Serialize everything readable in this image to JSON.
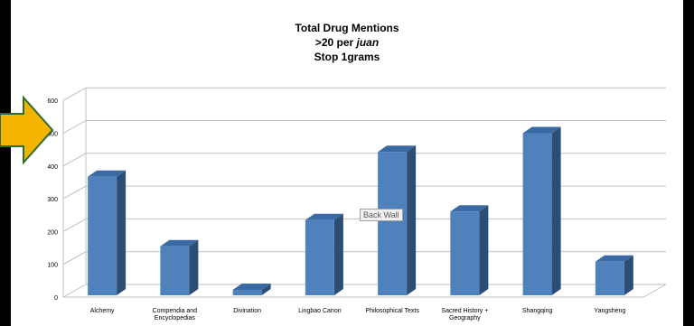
{
  "chart_data": {
    "type": "bar",
    "style": "3d-column",
    "title_lines": [
      {
        "parts": [
          {
            "text": "Total Drug Mentions",
            "italic": false
          }
        ]
      },
      {
        "parts": [
          {
            "text": ">20 per ",
            "italic": false
          },
          {
            "text": "juan",
            "italic": true
          }
        ]
      },
      {
        "parts": [
          {
            "text": "Stop 1grams",
            "italic": false
          }
        ]
      }
    ],
    "categories": [
      "Alchemy",
      "Compendia and Encyclopedias",
      "Divination",
      "Lingbao Canon",
      "Philosophical Texts",
      "Sacred History + Geography",
      "Shangqing",
      "Yangsheng"
    ],
    "values": [
      367,
      155,
      22,
      235,
      443,
      261,
      500,
      108
    ],
    "yticks": [
      0,
      100,
      200,
      300,
      400,
      500,
      600
    ],
    "ylim": [
      0,
      600
    ],
    "grid": true,
    "legend": "none",
    "xlabel": "",
    "ylabel": "",
    "colors": {
      "bar_front": "#4f81bd",
      "bar_side": "#2c4d75",
      "bar_top": "#3a6aa3",
      "gridline": "#bfbfbf",
      "arrow": "#f5b400",
      "arrow_border": "#2e6b30"
    }
  },
  "tooltip": {
    "text": "Back Wall"
  },
  "overlay": {
    "arrow_icon": "right-arrow-icon"
  }
}
